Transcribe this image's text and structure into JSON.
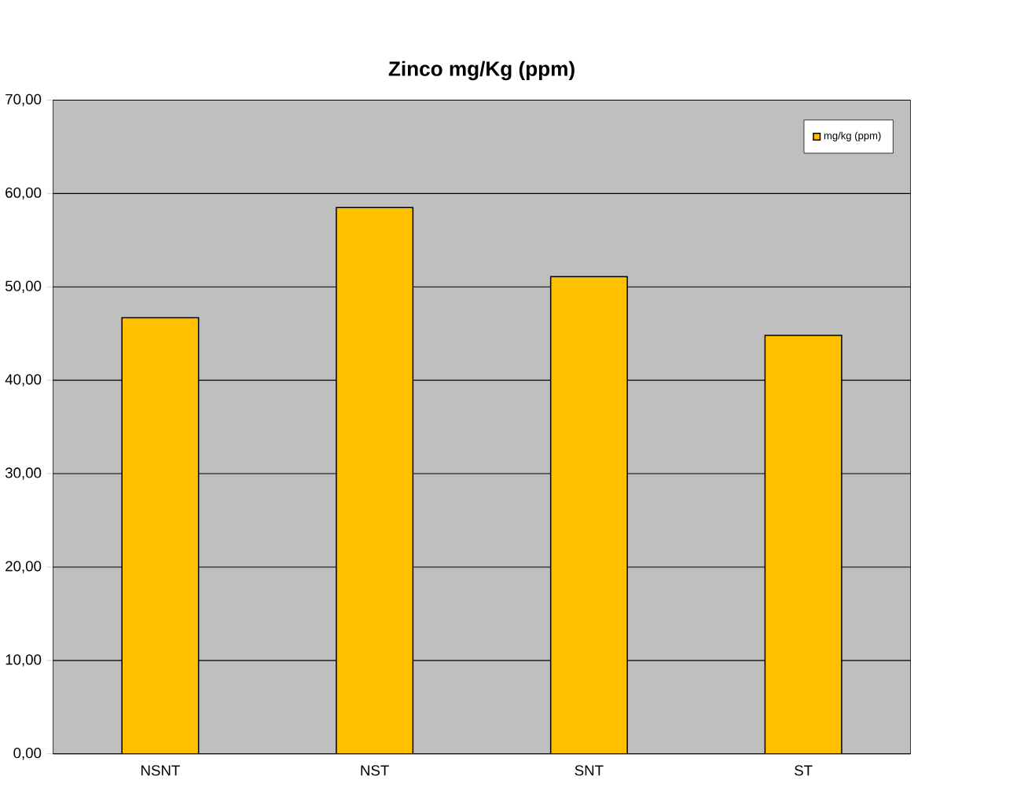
{
  "chart_data": {
    "type": "bar",
    "title": "Zinco mg/Kg (ppm)",
    "categories": [
      "NSNT",
      "NST",
      "SNT",
      "ST"
    ],
    "series": [
      {
        "name": "mg/kg (ppm)",
        "color": "#ffc000",
        "values": [
          46.7,
          58.5,
          51.1,
          44.8
        ]
      }
    ],
    "ylim": [
      0,
      70
    ],
    "yticks": [
      {
        "value": 0,
        "label": "0,00"
      },
      {
        "value": 10,
        "label": "10,00"
      },
      {
        "value": 20,
        "label": "20,00"
      },
      {
        "value": 30,
        "label": "30,00"
      },
      {
        "value": 40,
        "label": "40,00"
      },
      {
        "value": 50,
        "label": "50,00"
      },
      {
        "value": 60,
        "label": "60,00"
      },
      {
        "value": 70,
        "label": "70,00"
      }
    ],
    "grid": "y",
    "legend": "top right"
  }
}
